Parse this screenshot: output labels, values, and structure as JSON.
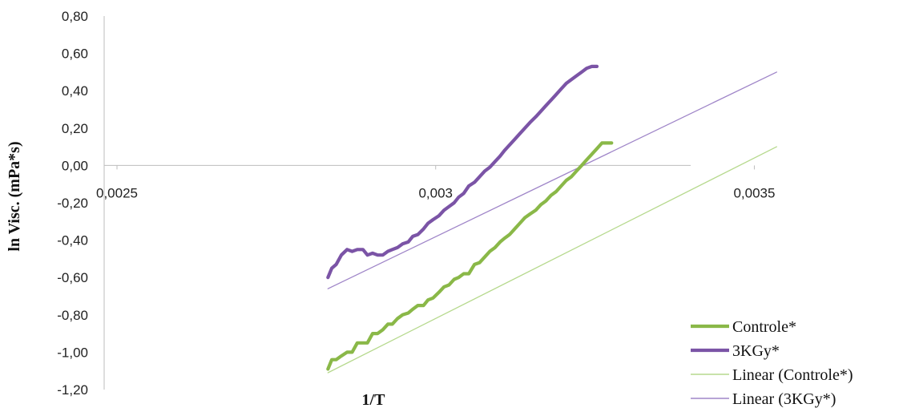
{
  "chart_data": {
    "type": "line",
    "title": "",
    "xlabel": "1/T",
    "ylabel": "ln Visc. (mPa*s)",
    "xlim": [
      0.0025,
      0.0036
    ],
    "ylim": [
      -1.2,
      0.8
    ],
    "x_ticks": [
      {
        "value": 0.0025,
        "label": "0,0025"
      },
      {
        "value": 0.003,
        "label": "0,003"
      },
      {
        "value": 0.0035,
        "label": "0,0035"
      }
    ],
    "y_ticks": [
      {
        "value": 0.8,
        "label": "0,80"
      },
      {
        "value": 0.6,
        "label": "0,60"
      },
      {
        "value": 0.4,
        "label": "0,40"
      },
      {
        "value": 0.2,
        "label": "0,20"
      },
      {
        "value": 0.0,
        "label": "0,00"
      },
      {
        "value": -0.2,
        "label": "-0,20"
      },
      {
        "value": -0.4,
        "label": "-0,40"
      },
      {
        "value": -0.6,
        "label": "-0,60"
      },
      {
        "value": -0.8,
        "label": "-0,80"
      },
      {
        "value": -1.0,
        "label": "-1,00"
      },
      {
        "value": -1.2,
        "label": "-1,20"
      }
    ],
    "grid": false,
    "legend_position": "bottom-right",
    "series": [
      {
        "name": "Controle*",
        "color": "#8ab848",
        "style": "thick",
        "points": [
          [
            0.002831,
            -1.09
          ],
          [
            0.002837,
            -1.04
          ],
          [
            0.002844,
            -1.04
          ],
          [
            0.002852,
            -1.02
          ],
          [
            0.002861,
            -1.0
          ],
          [
            0.002869,
            -1.0
          ],
          [
            0.002877,
            -0.95
          ],
          [
            0.002886,
            -0.95
          ],
          [
            0.002893,
            -0.95
          ],
          [
            0.002901,
            -0.9
          ],
          [
            0.002909,
            -0.9
          ],
          [
            0.002917,
            -0.88
          ],
          [
            0.002925,
            -0.85
          ],
          [
            0.002932,
            -0.85
          ],
          [
            0.00294,
            -0.82
          ],
          [
            0.002948,
            -0.8
          ],
          [
            0.002957,
            -0.79
          ],
          [
            0.002964,
            -0.77
          ],
          [
            0.002972,
            -0.75
          ],
          [
            0.002981,
            -0.75
          ],
          [
            0.002988,
            -0.72
          ],
          [
            0.002996,
            -0.71
          ],
          [
            0.003005,
            -0.68
          ],
          [
            0.003013,
            -0.65
          ],
          [
            0.003021,
            -0.64
          ],
          [
            0.003029,
            -0.61
          ],
          [
            0.003036,
            -0.6
          ],
          [
            0.003044,
            -0.58
          ],
          [
            0.003052,
            -0.58
          ],
          [
            0.003061,
            -0.53
          ],
          [
            0.003069,
            -0.52
          ],
          [
            0.003077,
            -0.49
          ],
          [
            0.003085,
            -0.46
          ],
          [
            0.003093,
            -0.44
          ],
          [
            0.003101,
            -0.41
          ],
          [
            0.003108,
            -0.39
          ],
          [
            0.003116,
            -0.37
          ],
          [
            0.003124,
            -0.34
          ],
          [
            0.003132,
            -0.31
          ],
          [
            0.00314,
            -0.28
          ],
          [
            0.003148,
            -0.26
          ],
          [
            0.003157,
            -0.24
          ],
          [
            0.003165,
            -0.21
          ],
          [
            0.003173,
            -0.19
          ],
          [
            0.003181,
            -0.16
          ],
          [
            0.003189,
            -0.14
          ],
          [
            0.003197,
            -0.11
          ],
          [
            0.003205,
            -0.08
          ],
          [
            0.003213,
            -0.06
          ],
          [
            0.003221,
            -0.03
          ],
          [
            0.003229,
            0.0
          ],
          [
            0.003237,
            0.03
          ],
          [
            0.003245,
            0.06
          ],
          [
            0.003253,
            0.09
          ],
          [
            0.003261,
            0.12
          ],
          [
            0.003269,
            0.12
          ],
          [
            0.003276,
            0.12
          ]
        ]
      },
      {
        "name": "3KGy*",
        "color": "#7b54a6",
        "style": "thick",
        "points": [
          [
            0.002831,
            -0.6
          ],
          [
            0.002837,
            -0.55
          ],
          [
            0.002844,
            -0.53
          ],
          [
            0.002852,
            -0.48
          ],
          [
            0.002861,
            -0.45
          ],
          [
            0.002869,
            -0.46
          ],
          [
            0.002877,
            -0.45
          ],
          [
            0.002886,
            -0.45
          ],
          [
            0.002893,
            -0.48
          ],
          [
            0.002901,
            -0.47
          ],
          [
            0.002909,
            -0.48
          ],
          [
            0.002917,
            -0.48
          ],
          [
            0.002925,
            -0.46
          ],
          [
            0.002932,
            -0.45
          ],
          [
            0.00294,
            -0.44
          ],
          [
            0.002948,
            -0.42
          ],
          [
            0.002957,
            -0.41
          ],
          [
            0.002964,
            -0.38
          ],
          [
            0.002972,
            -0.37
          ],
          [
            0.002981,
            -0.34
          ],
          [
            0.002988,
            -0.31
          ],
          [
            0.002996,
            -0.29
          ],
          [
            0.003005,
            -0.27
          ],
          [
            0.003013,
            -0.24
          ],
          [
            0.003021,
            -0.22
          ],
          [
            0.003029,
            -0.2
          ],
          [
            0.003036,
            -0.17
          ],
          [
            0.003044,
            -0.15
          ],
          [
            0.003052,
            -0.11
          ],
          [
            0.003061,
            -0.09
          ],
          [
            0.003069,
            -0.06
          ],
          [
            0.003077,
            -0.03
          ],
          [
            0.003085,
            -0.01
          ],
          [
            0.003093,
            0.02
          ],
          [
            0.003101,
            0.05
          ],
          [
            0.003108,
            0.08
          ],
          [
            0.003116,
            0.11
          ],
          [
            0.003124,
            0.14
          ],
          [
            0.003132,
            0.17
          ],
          [
            0.00314,
            0.2
          ],
          [
            0.003148,
            0.23
          ],
          [
            0.003157,
            0.26
          ],
          [
            0.003165,
            0.29
          ],
          [
            0.003173,
            0.32
          ],
          [
            0.003181,
            0.35
          ],
          [
            0.003189,
            0.38
          ],
          [
            0.003197,
            0.41
          ],
          [
            0.003205,
            0.44
          ],
          [
            0.003213,
            0.46
          ],
          [
            0.003221,
            0.48
          ],
          [
            0.003229,
            0.5
          ],
          [
            0.003237,
            0.52
          ],
          [
            0.003245,
            0.53
          ],
          [
            0.003253,
            0.53
          ]
        ]
      },
      {
        "name": "Linear (Controle*)",
        "color": "#b6d98d",
        "style": "thin",
        "points": [
          [
            0.002831,
            -1.11
          ],
          [
            0.003535,
            0.1
          ]
        ]
      },
      {
        "name": "Linear (3KGy*)",
        "color": "#9f85c8",
        "style": "thin",
        "points": [
          [
            0.002831,
            -0.66
          ],
          [
            0.003535,
            0.5
          ]
        ]
      }
    ]
  }
}
